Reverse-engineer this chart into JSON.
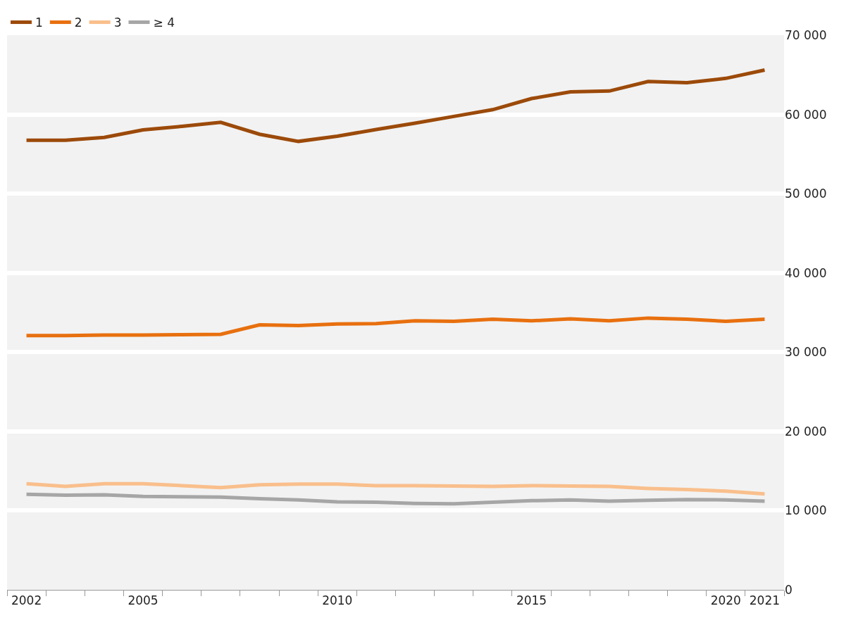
{
  "chart_data": {
    "type": "line",
    "x": [
      2002,
      2003,
      2004,
      2005,
      2006,
      2007,
      2008,
      2009,
      2010,
      2011,
      2012,
      2013,
      2014,
      2015,
      2016,
      2017,
      2018,
      2019,
      2020,
      2021
    ],
    "series": [
      {
        "name": "1",
        "color": "#9c4a0a",
        "values": [
          56750,
          56750,
          57100,
          58050,
          58500,
          59000,
          57500,
          56600,
          57250,
          58100,
          58900,
          59750,
          60600,
          62000,
          62850,
          62950,
          64150,
          64000,
          64550,
          65600
        ]
      },
      {
        "name": "2",
        "color": "#e8700f",
        "values": [
          32100,
          32100,
          32150,
          32150,
          32200,
          32250,
          33450,
          33350,
          33550,
          33600,
          33950,
          33900,
          34150,
          33950,
          34200,
          33950,
          34300,
          34150,
          33900,
          34150
        ]
      },
      {
        "name": "3",
        "color": "#f9bf8c",
        "values": [
          13400,
          13050,
          13400,
          13400,
          13150,
          12900,
          13250,
          13350,
          13350,
          13150,
          13150,
          13100,
          13050,
          13150,
          13100,
          13050,
          12800,
          12650,
          12450,
          12100
        ]
      },
      {
        "name": "≥ 4",
        "color": "#a6a6a6",
        "values": [
          12050,
          11950,
          12000,
          11800,
          11750,
          11700,
          11500,
          11350,
          11100,
          11050,
          10900,
          10850,
          11050,
          11250,
          11350,
          11200,
          11300,
          11400,
          11350,
          11200
        ]
      }
    ],
    "xlim": [
      2001.5,
      2021.5
    ],
    "xticks": [
      2002,
      2005,
      2010,
      2015,
      2020,
      2021,
      {
        "value": 2001.5,
        "label": null
      },
      {
        "value": 2002.5,
        "label": null
      },
      {
        "value": 2003.5,
        "label": null
      },
      {
        "value": 2004.5,
        "label": null
      },
      {
        "value": 2005.5,
        "label": null
      },
      {
        "value": 2006.5,
        "label": null
      },
      {
        "value": 2007.5,
        "label": null
      },
      {
        "value": 2008.5,
        "label": null
      },
      {
        "value": 2009.5,
        "label": null
      },
      {
        "value": 2010.5,
        "label": null
      },
      {
        "value": 2011.5,
        "label": null
      },
      {
        "value": 2012.5,
        "label": null
      },
      {
        "value": 2013.5,
        "label": null
      },
      {
        "value": 2014.5,
        "label": null
      },
      {
        "value": 2015.5,
        "label": null
      },
      {
        "value": 2016.5,
        "label": null
      },
      {
        "value": 2017.5,
        "label": null
      },
      {
        "value": 2018.5,
        "label": null
      },
      {
        "value": 2019.5,
        "label": null
      },
      {
        "value": 2020.5,
        "label": null
      },
      {
        "value": 2021.5,
        "label": null
      }
    ],
    "ylim": [
      0,
      70000
    ],
    "yticks": [
      {
        "value": 0,
        "label": "0"
      },
      {
        "value": 10000,
        "label": "10 000"
      },
      {
        "value": 20000,
        "label": "20 000"
      },
      {
        "value": 30000,
        "label": "30 000"
      },
      {
        "value": 40000,
        "label": "40 000"
      },
      {
        "value": 50000,
        "label": "50 000"
      },
      {
        "value": 60000,
        "label": "60 000"
      },
      {
        "value": 70000,
        "label": "70 000"
      }
    ],
    "grid": "y",
    "legend": "top left",
    "marker": "none",
    "line_style": "solid"
  }
}
